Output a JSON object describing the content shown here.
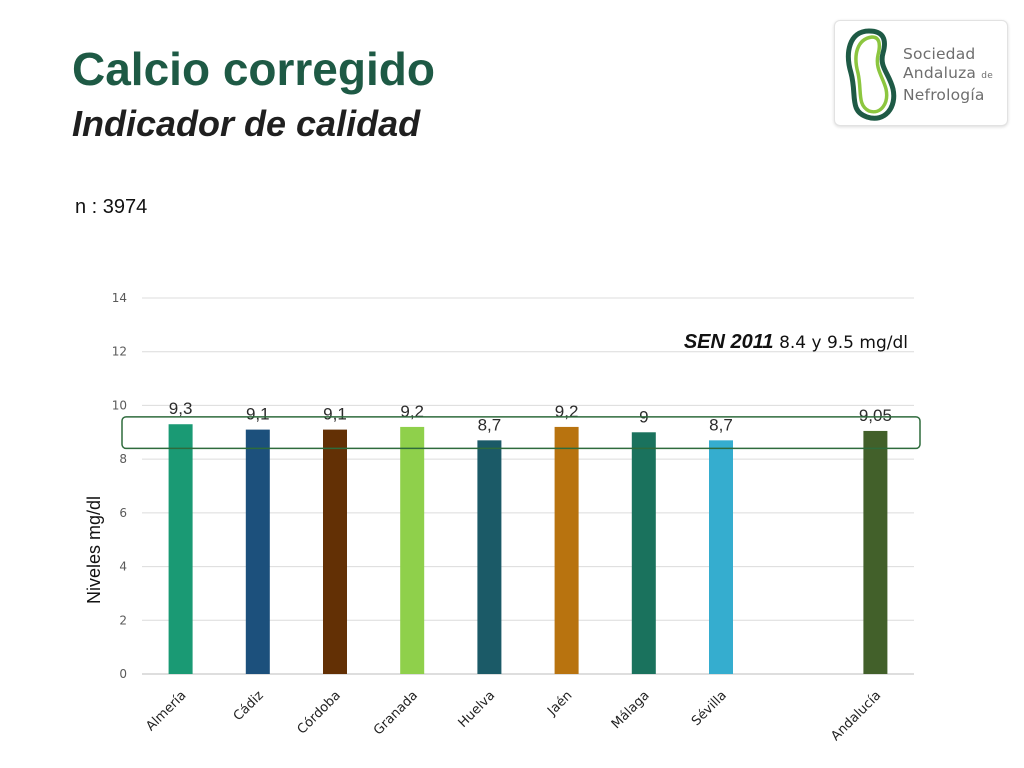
{
  "header": {
    "title": "Calcio corregido",
    "subtitle": "Indicador de calidad",
    "sample_size": "n : 3974"
  },
  "logo": {
    "line1": "Sociedad",
    "line2": "Andaluza",
    "line2_small": "de",
    "line3": "Nefrología",
    "colors": {
      "ring_dark": "#1e5a45",
      "ring_light": "#8cc63f",
      "text": "#6e6e6e"
    }
  },
  "chart_data": {
    "type": "bar",
    "ylabel": "Niveles mg/dl",
    "ylim": [
      0,
      14
    ],
    "yticks": [
      0,
      2,
      4,
      6,
      8,
      10,
      12,
      14
    ],
    "grid": true,
    "categories": [
      "Almería",
      "Cádiz",
      "Córdoba",
      "Granada",
      "Huelva",
      "Jaén",
      "Málaga",
      "Sévilla",
      "",
      "Andalucía"
    ],
    "values": [
      9.3,
      9.1,
      9.1,
      9.2,
      8.7,
      9.2,
      9.0,
      8.7,
      null,
      9.05
    ],
    "value_labels": [
      "9,3",
      "9,1",
      "9,1",
      "9,2",
      "8,7",
      "9,2",
      "9",
      "8,7",
      "",
      "9,05"
    ],
    "bar_colors": [
      "#1a9a74",
      "#1c507c",
      "#633005",
      "#8fd04b",
      "#1b5a67",
      "#b8730f",
      "#1a725d",
      "#35adcf",
      "",
      "#42602a"
    ],
    "reference": {
      "label": "SEN 2011",
      "range_text": "8.4 y 9.5 mg/dl",
      "range": [
        8.4,
        9.5
      ],
      "color": "#2e6b3c"
    }
  }
}
